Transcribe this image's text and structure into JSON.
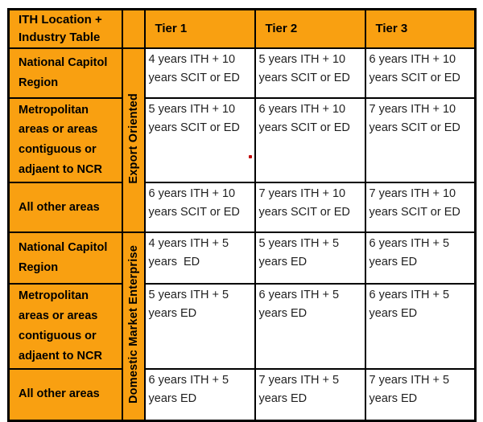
{
  "table": {
    "title": "ITH Location + Industry Table",
    "tier_headers": [
      "Tier 1",
      "Tier 2",
      "Tier 3"
    ],
    "sections": [
      {
        "group": "Export Oriented",
        "rows": [
          {
            "location": "National Capitol Region",
            "tiers": [
              "4 years ITH + 10 years SCIT or ED",
              "5 years ITH + 10 years SCIT or ED",
              "6 years ITH + 10 years SCIT or ED"
            ]
          },
          {
            "location": "Metropolitan areas or areas contiguous or adjaent to NCR",
            "tiers": [
              "5 years ITH + 10 years SCIT or ED",
              "6 years ITH + 10 years SCIT or ED",
              "7 years ITH + 10 years SCIT or ED"
            ]
          },
          {
            "location": "All other areas",
            "tiers": [
              "6 years ITH + 10 years SCIT or ED",
              "7 years ITH + 10 years SCIT or ED",
              "7 years ITH + 10 years SCIT or ED"
            ]
          }
        ]
      },
      {
        "group": "Domestic Market Enterprise",
        "rows": [
          {
            "location": "National Capitol Region",
            "tiers": [
              "4 years ITH + 5 years  ED",
              "5 years ITH + 5 years ED",
              "6 years ITH + 5 years ED"
            ]
          },
          {
            "location": "Metropolitan areas or areas contiguous or adjaent to NCR",
            "tiers": [
              "5 years ITH + 5 years ED",
              "6 years ITH + 5 years ED",
              "6 years ITH + 5 years ED"
            ]
          },
          {
            "location": "All other areas",
            "tiers": [
              "6 years ITH + 5 years ED",
              "7 years ITH + 5 years ED",
              "7 years ITH + 5 years ED"
            ]
          }
        ]
      }
    ],
    "colors": {
      "header_bg": "#F9A011",
      "border": "#000000",
      "data_text": "#1F1F1F",
      "annotation_dot": "#C00000"
    },
    "annotation": {
      "type": "stray-red-dot"
    }
  }
}
